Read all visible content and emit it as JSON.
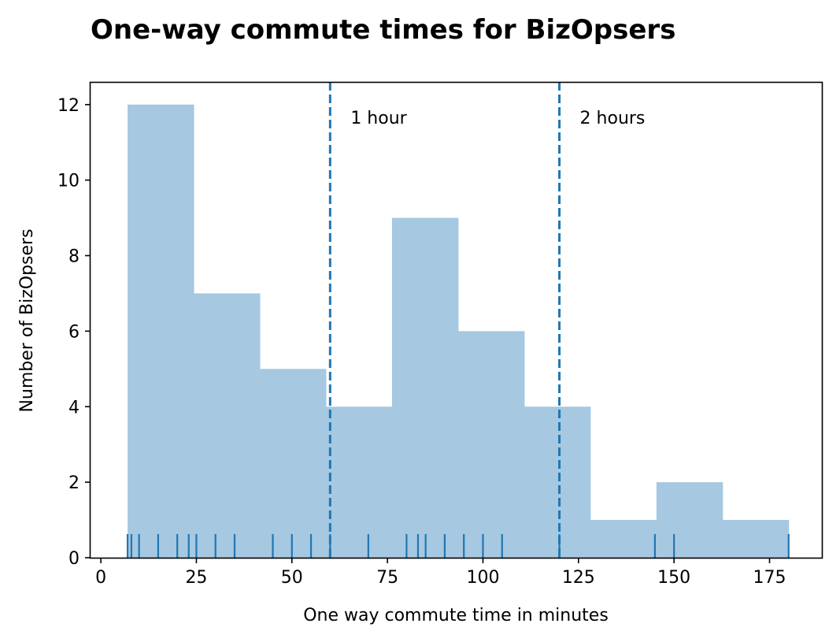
{
  "chart_data": {
    "type": "histogram",
    "title": "One-way commute times for BizOpsers",
    "xlabel": "One way commute time in minutes",
    "ylabel": "Number of BizOpsers",
    "xlim": [
      -2.7,
      188.7
    ],
    "ylim": [
      0,
      12.6
    ],
    "xticks": [
      0,
      25,
      50,
      75,
      100,
      125,
      150,
      175
    ],
    "yticks": [
      0,
      2,
      4,
      6,
      8,
      10,
      12
    ],
    "bin_edges": [
      7,
      24.3,
      41.6,
      58.9,
      76.2,
      93.5,
      110.8,
      128.1,
      145.4,
      162.7,
      180
    ],
    "counts": [
      12,
      7,
      5,
      4,
      9,
      6,
      4,
      1,
      2,
      1
    ],
    "rug_values": [
      7,
      8,
      10,
      15,
      20,
      23,
      25,
      30,
      35,
      45,
      50,
      55,
      60,
      70,
      80,
      83,
      85,
      90,
      95,
      100,
      105,
      120,
      145,
      150,
      180
    ],
    "reference_lines": [
      {
        "x": 60,
        "label": "1 hour",
        "style": "dashed"
      },
      {
        "x": 120,
        "label": "2 hours",
        "style": "dashed"
      }
    ],
    "colors": {
      "bars": "#a6c8e0",
      "rug": "#1f77b4",
      "reference_lines": "#1f77b4"
    },
    "grid": false,
    "legend": "none"
  }
}
